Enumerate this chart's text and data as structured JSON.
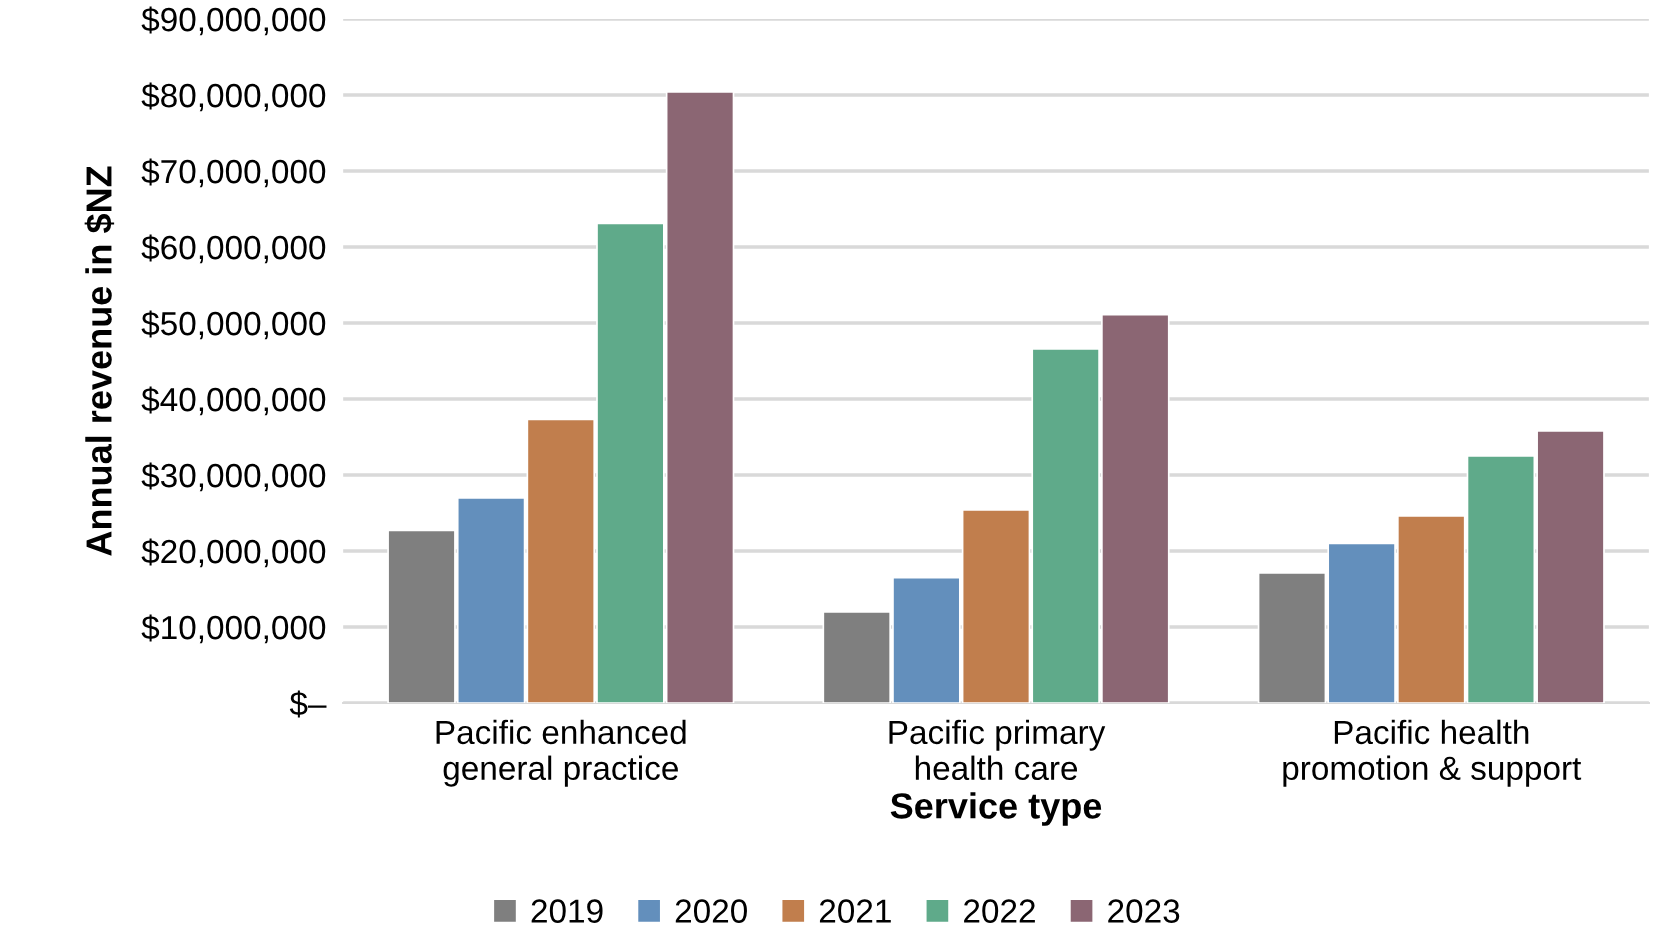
{
  "chart_data": {
    "type": "bar",
    "xlabel": "Service type",
    "ylabel": "Annual revenue in $NZ",
    "categories": [
      "Pacific enhanced\ngeneral practice",
      "Pacific primary\nhealth care",
      "Pacific health\npromotion & support"
    ],
    "series": [
      {
        "name": "2019",
        "color": "#7f7f7f",
        "values": [
          22700000,
          12000000,
          17100000
        ]
      },
      {
        "name": "2020",
        "color": "#638fbc",
        "values": [
          27000000,
          16500000,
          21000000
        ]
      },
      {
        "name": "2021",
        "color": "#c17e4d",
        "values": [
          37300000,
          25400000,
          24600000
        ]
      },
      {
        "name": "2022",
        "color": "#5faa8a",
        "values": [
          63100000,
          46600000,
          32500000
        ]
      },
      {
        "name": "2023",
        "color": "#8b6673",
        "values": [
          80400000,
          51100000,
          35800000
        ]
      }
    ],
    "ylim": [
      0,
      90000000
    ],
    "yticks": [
      {
        "value": 0,
        "label": "$–"
      },
      {
        "value": 10000000,
        "label": "$10,000,000"
      },
      {
        "value": 20000000,
        "label": "$20,000,000"
      },
      {
        "value": 30000000,
        "label": "$30,000,000"
      },
      {
        "value": 40000000,
        "label": "$40,000,000"
      },
      {
        "value": 50000000,
        "label": "$50,000,000"
      },
      {
        "value": 60000000,
        "label": "$60,000,000"
      },
      {
        "value": 70000000,
        "label": "$70,000,000"
      },
      {
        "value": 80000000,
        "label": "$80,000,000"
      },
      {
        "value": 90000000,
        "label": "$90,000,000"
      }
    ],
    "grid": "y",
    "legend": "bottom"
  }
}
